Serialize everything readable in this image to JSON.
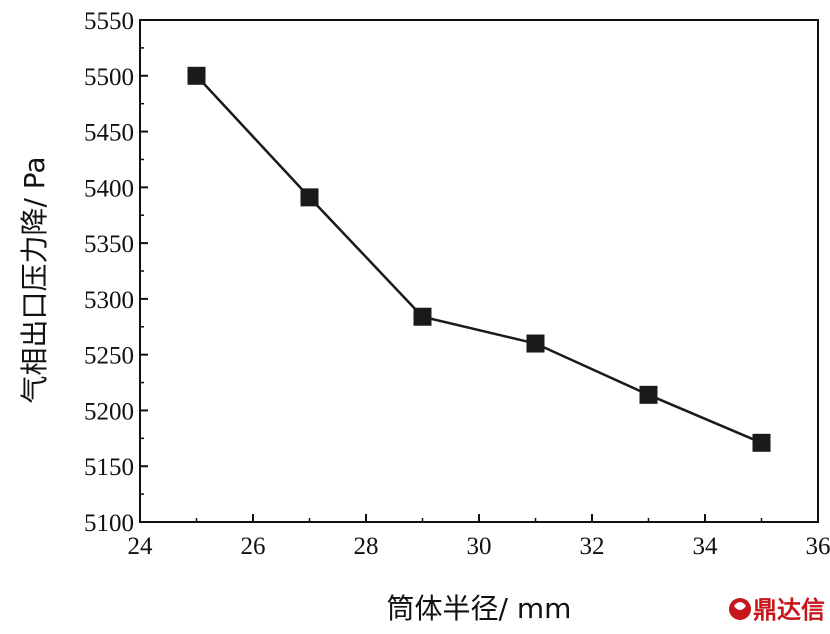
{
  "chart_data": {
    "type": "line",
    "title": "",
    "xlabel": "筒体半径/ mm",
    "ylabel": "气相出口压力降/ Pa",
    "xlim": [
      24,
      36
    ],
    "ylim": [
      5100,
      5550
    ],
    "xticks": [
      24,
      26,
      28,
      30,
      32,
      34,
      36
    ],
    "yticks": [
      5100,
      5150,
      5200,
      5250,
      5300,
      5350,
      5400,
      5450,
      5500,
      5550
    ],
    "marker": "square",
    "grid": false,
    "series": [
      {
        "x": [
          25,
          27,
          29,
          31,
          33,
          35
        ],
        "y": [
          5500,
          5391,
          5284,
          5260,
          5214,
          5171
        ]
      }
    ],
    "colors": {
      "line": "#1a1a1a",
      "marker": "#1a1a1a",
      "watermark": "#c8161d"
    }
  },
  "watermark": {
    "text": "鼎达信",
    "icon": "brand-logo-icon"
  }
}
